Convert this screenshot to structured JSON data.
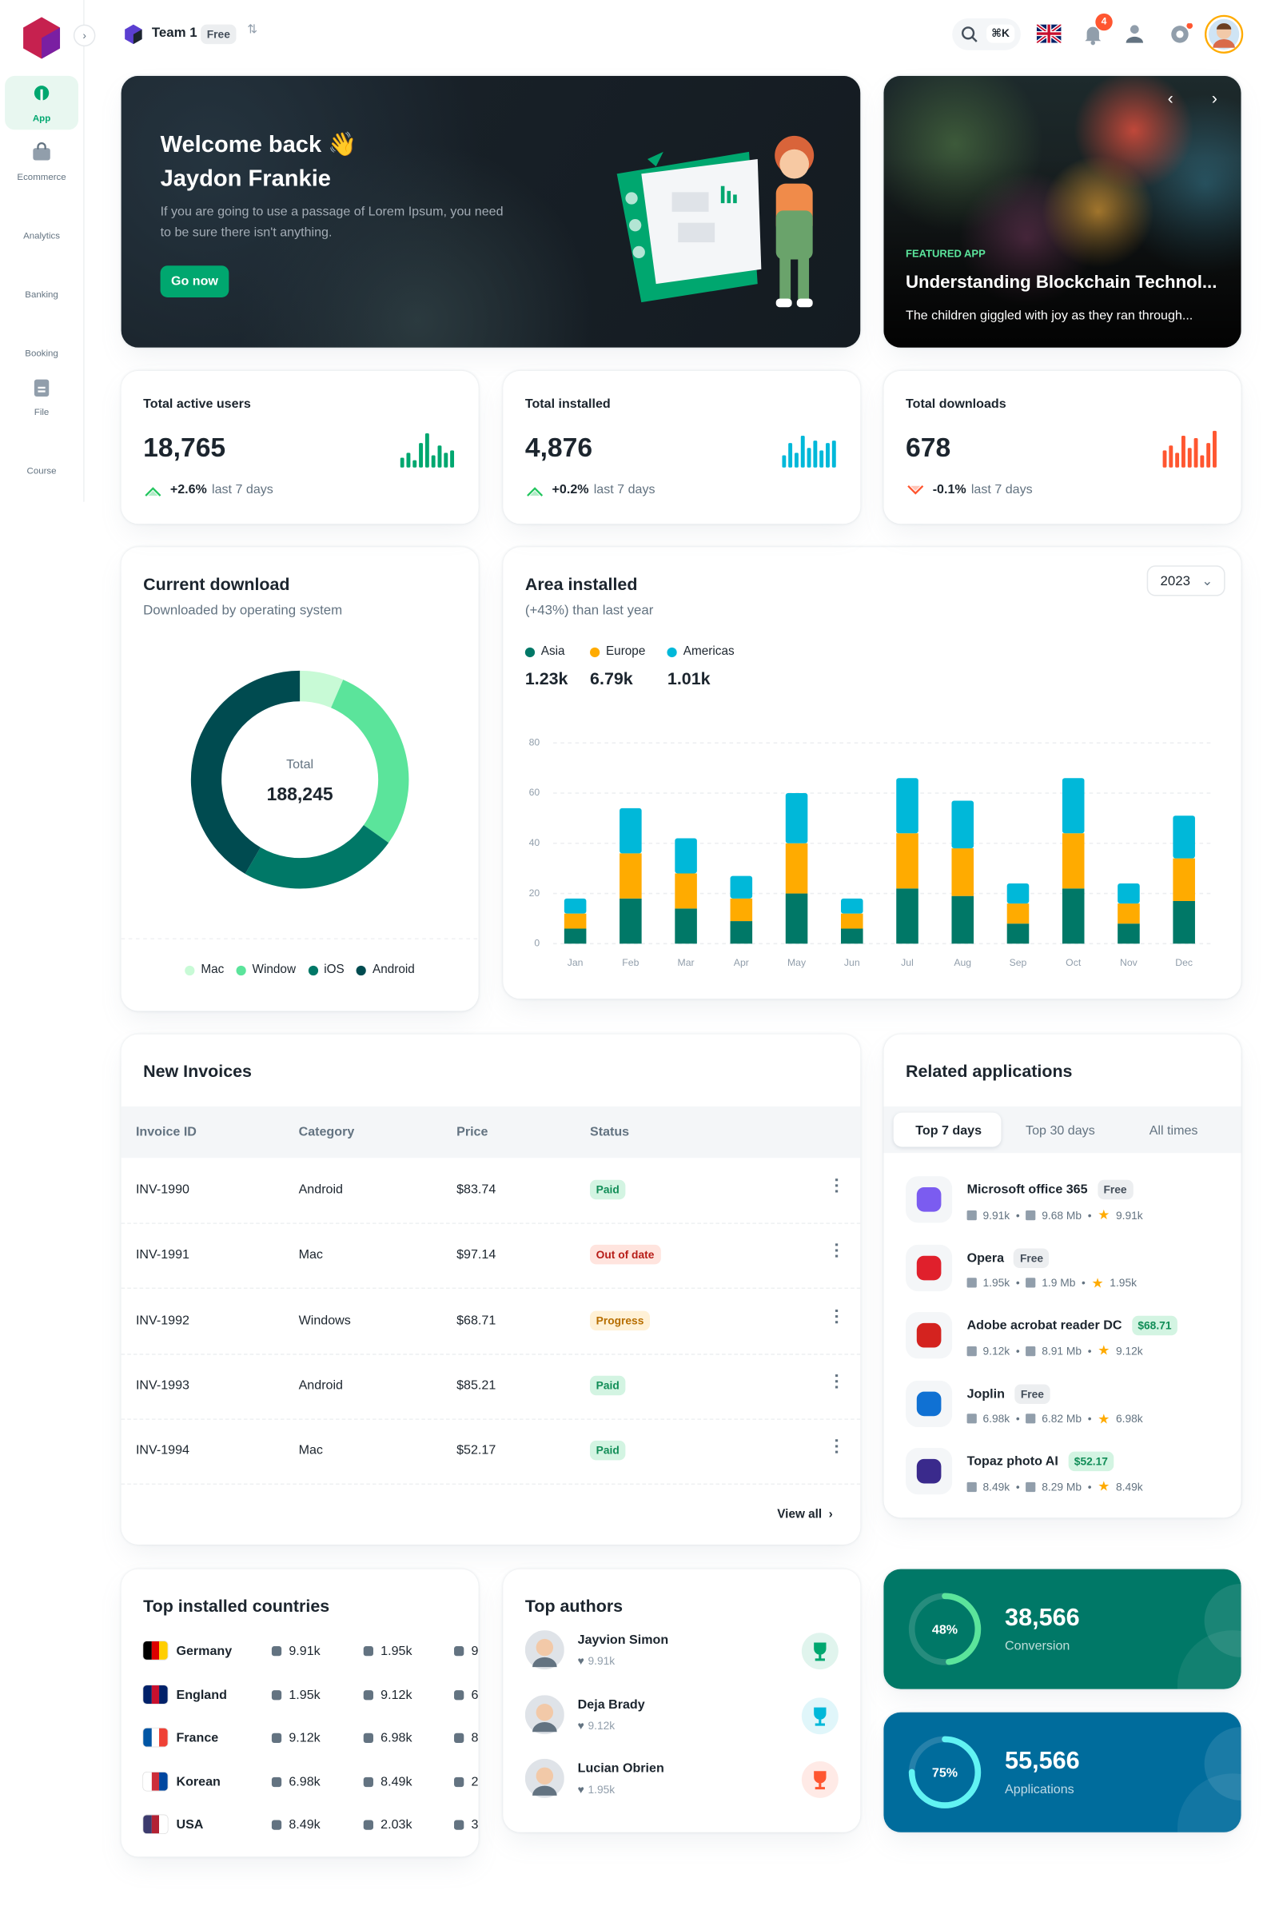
{
  "sidebar": {
    "nav": [
      "App",
      "Ecommerce",
      "Analytics",
      "Banking",
      "Booking",
      "File",
      "Course"
    ]
  },
  "topbar": {
    "team": "Team 1",
    "plan": "Free",
    "search_shortcut": "⌘K",
    "notifications": 4
  },
  "welcome": {
    "title": "Welcome back 👋",
    "name": "Jaydon Frankie",
    "description": "If you are going to use a passage of Lorem Ipsum, you need to be sure there isn't anything.",
    "button": "Go now"
  },
  "featured": {
    "tag": "FEATURED APP",
    "title": "Understanding Blockchain Technol...",
    "description": "The children giggled with joy as they ran through..."
  },
  "stats": [
    {
      "label": "Total active users",
      "value": "18,765",
      "change": "+2.6%",
      "period": "last 7 days",
      "trend_color": "#22c55e",
      "color": "#00a76f",
      "ylim": [
        0,
        30
      ],
      "bars": [
        8,
        12,
        6,
        20,
        28,
        10,
        18,
        12,
        14
      ]
    },
    {
      "label": "Total installed",
      "value": "4,876",
      "change": "+0.2%",
      "period": "last 7 days",
      "trend_color": "#22c55e",
      "color": "#00b8d9",
      "ylim": [
        0,
        30
      ],
      "bars": [
        10,
        20,
        12,
        26,
        16,
        22,
        14,
        20,
        22
      ]
    },
    {
      "label": "Total downloads",
      "value": "678",
      "change": "-0.1%",
      "period": "last 7 days",
      "trend_color": "#ff5630",
      "color": "#ff5630",
      "ylim": [
        0,
        30
      ],
      "bars": [
        14,
        18,
        12,
        26,
        16,
        24,
        10,
        20,
        30
      ]
    }
  ],
  "chart_data": [
    {
      "type": "donut",
      "title": "Current download",
      "subtitle": "Downloaded by operating system",
      "center_label": "Total",
      "total_label": "188,245",
      "categories": [
        "Mac",
        "Window",
        "iOS",
        "Android"
      ],
      "values": [
        12244,
        53345,
        44313,
        78343
      ],
      "colors": [
        "#c8fad6",
        "#5be49b",
        "#007867",
        "#004b50"
      ]
    },
    {
      "type": "bar",
      "stacked": true,
      "title": "Area installed",
      "subtitle": "(+43%) than last year",
      "year_filter": "2023",
      "categories": [
        "Jan",
        "Feb",
        "Mar",
        "Apr",
        "May",
        "Jun",
        "Jul",
        "Aug",
        "Sep",
        "Oct",
        "Nov",
        "Dec"
      ],
      "series": [
        {
          "name": "Asia",
          "summary": "1.23k",
          "color": "#007867",
          "values": [
            6,
            18,
            14,
            9,
            20,
            6,
            22,
            19,
            8,
            22,
            8,
            17
          ]
        },
        {
          "name": "Europe",
          "summary": "6.79k",
          "color": "#ffab00",
          "values": [
            6,
            18,
            14,
            9,
            20,
            6,
            22,
            19,
            8,
            22,
            8,
            17
          ]
        },
        {
          "name": "Americas",
          "summary": "1.01k",
          "color": "#00b8d9",
          "values": [
            6,
            18,
            14,
            9,
            20,
            6,
            22,
            19,
            8,
            22,
            8,
            17
          ]
        }
      ],
      "ylim": [
        0,
        80
      ],
      "yticks": [
        0,
        20,
        40,
        60,
        80
      ],
      "grid": true
    }
  ],
  "invoices": {
    "title": "New Invoices",
    "columns": [
      "Invoice ID",
      "Category",
      "Price",
      "Status"
    ],
    "rows": [
      {
        "id": "INV-1990",
        "category": "Android",
        "price": "$83.74",
        "status": "Paid",
        "status_color": "#118d57",
        "status_bg": "#d3f4e2"
      },
      {
        "id": "INV-1991",
        "category": "Mac",
        "price": "$97.14",
        "status": "Out of date",
        "status_color": "#b71d18",
        "status_bg": "#ffe4de"
      },
      {
        "id": "INV-1992",
        "category": "Windows",
        "price": "$68.71",
        "status": "Progress",
        "status_color": "#b76e00",
        "status_bg": "#fff1d6"
      },
      {
        "id": "INV-1993",
        "category": "Android",
        "price": "$85.21",
        "status": "Paid",
        "status_color": "#118d57",
        "status_bg": "#d3f4e2"
      },
      {
        "id": "INV-1994",
        "category": "Mac",
        "price": "$52.17",
        "status": "Paid",
        "status_color": "#118d57",
        "status_bg": "#d3f4e2"
      }
    ],
    "view_all": "View all"
  },
  "related_apps": {
    "title": "Related applications",
    "tabs": [
      "Top 7 days",
      "Top 30 days",
      "All times"
    ],
    "active_tab": 0,
    "apps": [
      {
        "name": "Microsoft office 365",
        "price": "Free",
        "paid": false,
        "downloads": "9.91k",
        "size": "9.68 Mb",
        "rating": "9.91k",
        "icon_color": "#7b5cf0"
      },
      {
        "name": "Opera",
        "price": "Free",
        "paid": false,
        "downloads": "1.95k",
        "size": "1.9 Mb",
        "rating": "1.95k",
        "icon_color": "#e0202c"
      },
      {
        "name": "Adobe acrobat reader DC",
        "price": "$68.71",
        "paid": true,
        "downloads": "9.12k",
        "size": "8.91 Mb",
        "rating": "9.12k",
        "icon_color": "#d4231f"
      },
      {
        "name": "Joplin",
        "price": "Free",
        "paid": false,
        "downloads": "6.98k",
        "size": "6.82 Mb",
        "rating": "6.98k",
        "icon_color": "#1071d3"
      },
      {
        "name": "Topaz photo AI",
        "price": "$52.17",
        "paid": true,
        "downloads": "8.49k",
        "size": "8.29 Mb",
        "rating": "8.49k",
        "icon_color": "#3a2a8c"
      }
    ]
  },
  "countries": {
    "title": "Top installed countries",
    "rows": [
      {
        "name": "Germany",
        "android": "9.91k",
        "windows": "1.95k",
        "apple": "9",
        "flag": [
          "#000000",
          "#dd0000",
          "#ffce00"
        ]
      },
      {
        "name": "England",
        "android": "1.95k",
        "windows": "9.12k",
        "apple": "6",
        "flag": [
          "#012169",
          "#c8102e",
          "#012169"
        ]
      },
      {
        "name": "France",
        "android": "9.12k",
        "windows": "6.98k",
        "apple": "8",
        "flag": [
          "#0055a4",
          "#ffffff",
          "#ef4135"
        ]
      },
      {
        "name": "Korean",
        "android": "6.98k",
        "windows": "8.49k",
        "apple": "2",
        "flag": [
          "#ffffff",
          "#cd2e3a",
          "#0047a0"
        ]
      },
      {
        "name": "USA",
        "android": "8.49k",
        "windows": "2.03k",
        "apple": "3",
        "flag": [
          "#3c3b6e",
          "#b22234",
          "#ffffff"
        ]
      }
    ]
  },
  "authors": {
    "title": "Top authors",
    "rows": [
      {
        "name": "Jayvion Simon",
        "likes": "9.91k",
        "trophy_color": "#00a76f"
      },
      {
        "name": "Deja Brady",
        "likes": "9.12k",
        "trophy_color": "#00b8d9"
      },
      {
        "name": "Lucian Obrien",
        "likes": "1.95k",
        "trophy_color": "#ff5630"
      }
    ]
  },
  "widgets": [
    {
      "percent": 48,
      "percent_label": "48%",
      "value": "38,566",
      "label": "Conversion",
      "color": "#007867",
      "ring": "#5be49b"
    },
    {
      "percent": 75,
      "percent_label": "75%",
      "value": "55,566",
      "label": "Applications",
      "color": "#006c9c",
      "ring": "#61f3f3"
    }
  ]
}
